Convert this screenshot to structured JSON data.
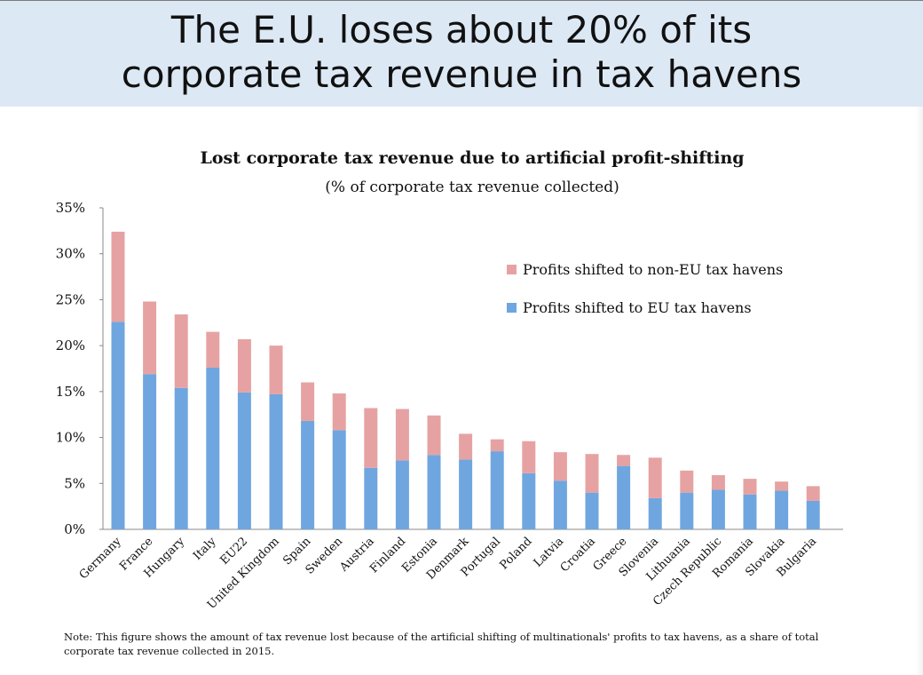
{
  "slide": {
    "title_line1": "The E.U. loses about 20% of its",
    "title_line2": "corporate tax revenue in tax havens"
  },
  "note": "Note:  This figure shows the amount of  tax revenue lost because of the artificial shifting of multinationals' profits to tax havens, as a share of total corporate tax revenue collected in 2015.",
  "colors": {
    "header_bg": "#dde8f5",
    "eu": "#6fa6df",
    "non_eu": "#e6a2a2"
  },
  "chart_data": {
    "type": "bar",
    "stacked": true,
    "title": "Lost corporate tax revenue due to artificial profit-shifting",
    "subtitle": "(% of corporate tax revenue collected)",
    "xlabel": "",
    "ylabel": "",
    "ylim": [
      0,
      35
    ],
    "yticks": [
      "0%",
      "5%",
      "10%",
      "15%",
      "20%",
      "25%",
      "30%",
      "35%"
    ],
    "grid": false,
    "legend_position": "top-right",
    "categories": [
      "Germany",
      "France",
      "Hungary",
      "Italy",
      "EU22",
      "United Kingdom",
      "Spain",
      "Sweden",
      "Austria",
      "Finland",
      "Estonia",
      "Denmark",
      "Portugal",
      "Poland",
      "Latvia",
      "Croatia",
      "Greece",
      "Slovenia",
      "Lithuania",
      "Czech Republic",
      "Romania",
      "Slovakia",
      "Bulgaria"
    ],
    "series": [
      {
        "name": "Profits shifted to EU tax havens",
        "color": "#6fa6df",
        "values": [
          22.6,
          16.9,
          15.4,
          17.6,
          14.9,
          14.7,
          11.8,
          10.8,
          6.7,
          7.5,
          8.1,
          7.6,
          8.5,
          6.1,
          5.3,
          4.0,
          6.9,
          3.4,
          4.0,
          4.3,
          3.8,
          4.2,
          3.1
        ]
      },
      {
        "name": "Profits shifted to non-EU tax havens",
        "color": "#e6a2a2",
        "values": [
          9.8,
          7.9,
          8.0,
          3.9,
          5.8,
          5.3,
          4.2,
          4.0,
          6.5,
          5.6,
          4.3,
          2.8,
          1.3,
          3.5,
          3.1,
          4.2,
          1.2,
          4.4,
          2.4,
          1.6,
          1.7,
          1.0,
          1.6
        ]
      }
    ],
    "legend": [
      "Profits shifted to non-EU tax havens",
      "Profits shifted to EU tax havens"
    ]
  }
}
